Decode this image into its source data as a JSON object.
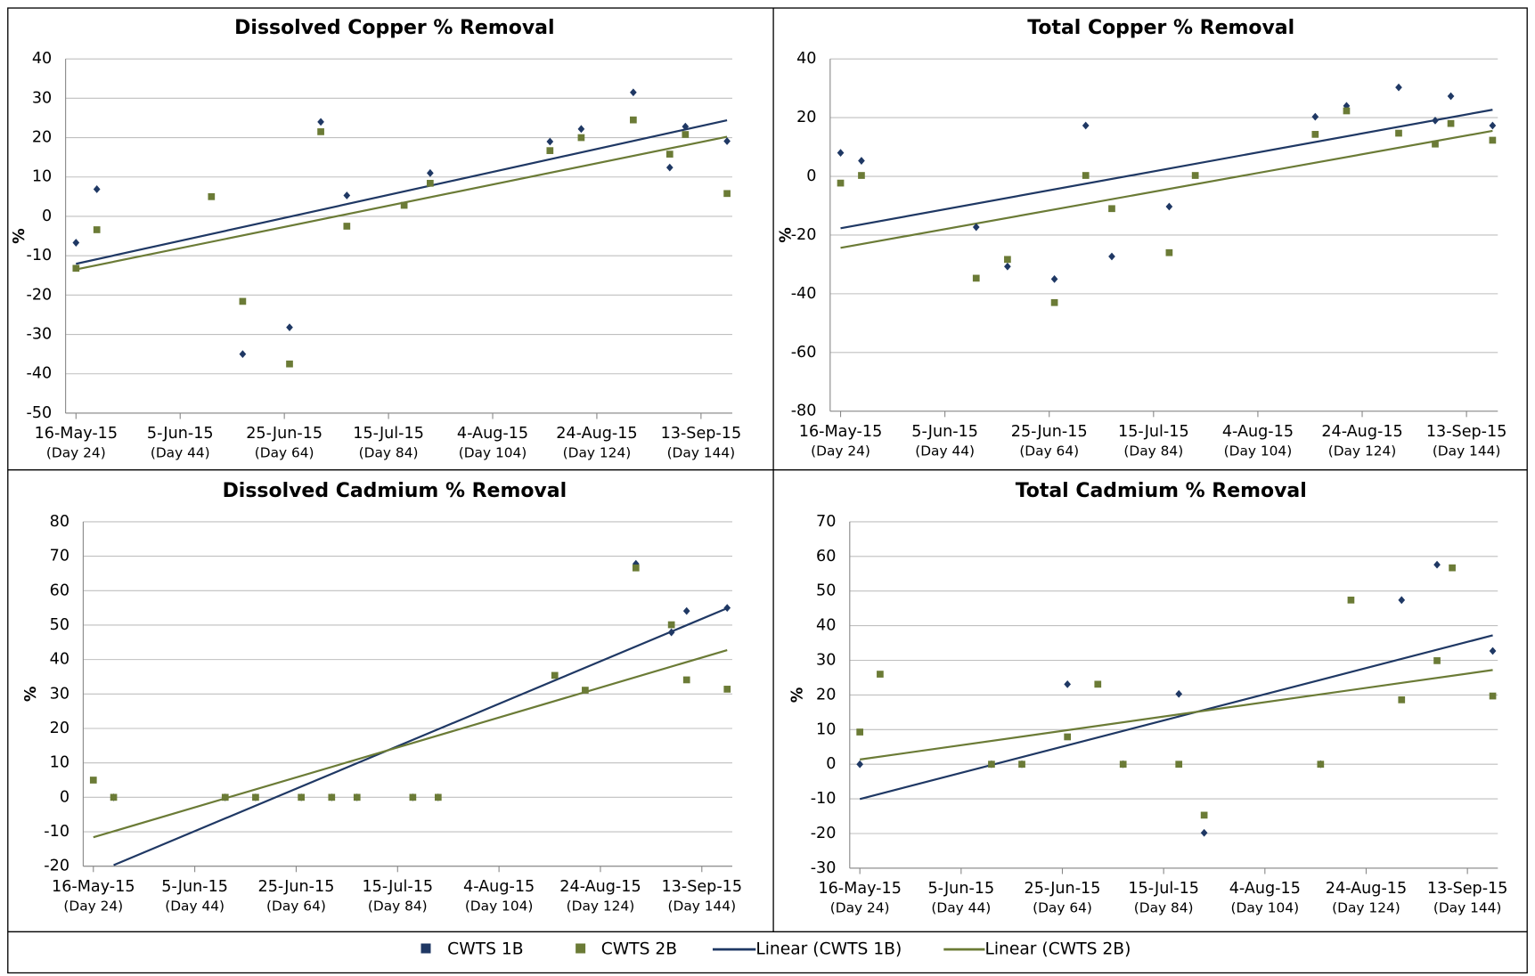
{
  "chart_data": [
    {
      "type": "scatter",
      "title": "Dissolved Copper % Removal",
      "y_label": "%",
      "x": [
        24,
        28,
        50,
        56,
        65,
        71,
        76,
        87,
        92,
        115,
        121,
        131,
        138,
        141,
        149
      ],
      "xlim": [
        22,
        150
      ],
      "xticks": [
        {
          "value": 24,
          "label": "16-May-15"
        },
        {
          "value": 44,
          "label": "5-Jun-15"
        },
        {
          "value": 64,
          "label": "25-Jun-15"
        },
        {
          "value": 84,
          "label": "15-Jul-15"
        },
        {
          "value": 104,
          "label": "4-Aug-15"
        },
        {
          "value": 124,
          "label": "24-Aug-15"
        },
        {
          "value": 144,
          "label": "13-Sep-15"
        }
      ],
      "xtick_days": [
        "(Day 24)",
        "(Day 44)",
        "(Day 64)",
        "(Day 84)",
        "(Day 104)",
        "(Day 124)",
        "(Day 144)"
      ],
      "ylim": [
        -50,
        40
      ],
      "yticks": [
        -50,
        -40,
        -30,
        -20,
        -10,
        0,
        10,
        20,
        30,
        40
      ],
      "grid": true,
      "series": [
        {
          "name": "CWTS 1B",
          "color": "#1f3864",
          "marker": "diamond",
          "values": [
            -6.7,
            6.9,
            null,
            -35,
            -28.2,
            24,
            5.3,
            null,
            11,
            19,
            22.2,
            31.5,
            12.4,
            22.8,
            19.1
          ],
          "trendline": {
            "name": "Linear (CWTS 1B)"
          }
        },
        {
          "name": "CWTS 2B",
          "color": "#6b7b36",
          "marker": "square",
          "values": [
            -13.2,
            -3.4,
            5,
            -21.6,
            -37.5,
            21.5,
            -2.5,
            2.8,
            8.4,
            16.7,
            20,
            24.5,
            15.8,
            20.8,
            5.8
          ],
          "trendline": {
            "name": "Linear (CWTS 2B)"
          }
        }
      ]
    },
    {
      "type": "scatter",
      "title": "Total Copper % Removal",
      "y_label": "%",
      "x": [
        24,
        28,
        50,
        56,
        65,
        71,
        76,
        87,
        92,
        115,
        121,
        131,
        138,
        141,
        149
      ],
      "xlim": [
        22,
        150
      ],
      "xticks": [
        {
          "value": 24,
          "label": "16-May-15"
        },
        {
          "value": 44,
          "label": "5-Jun-15"
        },
        {
          "value": 64,
          "label": "25-Jun-15"
        },
        {
          "value": 84,
          "label": "15-Jul-15"
        },
        {
          "value": 104,
          "label": "4-Aug-15"
        },
        {
          "value": 124,
          "label": "24-Aug-15"
        },
        {
          "value": 144,
          "label": "13-Sep-15"
        }
      ],
      "xtick_days": [
        "(Day 24)",
        "(Day 44)",
        "(Day 64)",
        "(Day 84)",
        "(Day 104)",
        "(Day 124)",
        "(Day 144)"
      ],
      "ylim": [
        -80,
        40
      ],
      "yticks": [
        -80,
        -60,
        -40,
        -20,
        0,
        20,
        40
      ],
      "grid": true,
      "series": [
        {
          "color": "#1f3864",
          "marker": "diamond",
          "values": [
            8,
            5.3,
            -17.3,
            -30.7,
            -35,
            17.3,
            -27.3,
            -10.3,
            null,
            20.3,
            24,
            30.3,
            19,
            27.3,
            17.3
          ],
          "trendline": true
        },
        {
          "color": "#6b7b36",
          "marker": "square",
          "values": [
            -2.3,
            0.3,
            -34.7,
            -28.3,
            -43,
            0.3,
            -11,
            -26,
            0.3,
            14.3,
            22.3,
            14.7,
            11,
            18,
            12.3
          ],
          "trendline": true
        }
      ]
    },
    {
      "type": "scatter",
      "title": "Dissolved Cadmium % Removal",
      "y_label": "%",
      "x": [
        24,
        28,
        50,
        56,
        65,
        71,
        76,
        87,
        92,
        115,
        121,
        131,
        138,
        141,
        149
      ],
      "xlim": [
        22,
        150
      ],
      "xticks": [
        {
          "value": 24,
          "label": "16-May-15"
        },
        {
          "value": 44,
          "label": "5-Jun-15"
        },
        {
          "value": 64,
          "label": "25-Jun-15"
        },
        {
          "value": 84,
          "label": "15-Jul-15"
        },
        {
          "value": 104,
          "label": "4-Aug-15"
        },
        {
          "value": 124,
          "label": "24-Aug-15"
        },
        {
          "value": 144,
          "label": "13-Sep-15"
        }
      ],
      "xtick_days": [
        "(Day 24)",
        "(Day 44)",
        "(Day 64)",
        "(Day 84)",
        "(Day 104)",
        "(Day 124)",
        "(Day 144)"
      ],
      "ylim": [
        -20,
        80
      ],
      "yticks": [
        -20,
        -10,
        0,
        10,
        20,
        30,
        40,
        50,
        60,
        70,
        80
      ],
      "grid": true,
      "series": [
        {
          "color": "#1f3864",
          "marker": "diamond",
          "values": [
            null,
            0,
            0,
            0,
            0,
            0,
            0,
            0,
            0,
            null,
            null,
            67.8,
            47.9,
            54.1,
            55
          ],
          "trendline": true
        },
        {
          "color": "#6b7b36",
          "marker": "square",
          "values": [
            5,
            0,
            0,
            0,
            0,
            0,
            0,
            0,
            0,
            35.4,
            31.1,
            66.6,
            50.1,
            34.1,
            31.4
          ],
          "trendline": true
        }
      ]
    },
    {
      "type": "scatter",
      "title": "Total Cadmium % Removal",
      "y_label": "%",
      "x": [
        24,
        28,
        50,
        56,
        65,
        71,
        76,
        87,
        92,
        115,
        121,
        131,
        138,
        141,
        149
      ],
      "xlim": [
        22,
        150
      ],
      "xticks": [
        {
          "value": 24,
          "label": "16-May-15"
        },
        {
          "value": 44,
          "label": "5-Jun-15"
        },
        {
          "value": 64,
          "label": "25-Jun-15"
        },
        {
          "value": 84,
          "label": "15-Jul-15"
        },
        {
          "value": 104,
          "label": "4-Aug-15"
        },
        {
          "value": 124,
          "label": "24-Aug-15"
        },
        {
          "value": 144,
          "label": "13-Sep-15"
        }
      ],
      "xtick_days": [
        "(Day 24)",
        "(Day 44)",
        "(Day 64)",
        "(Day 84)",
        "(Day 104)",
        "(Day 124)",
        "(Day 144)"
      ],
      "ylim": [
        -30,
        70
      ],
      "yticks": [
        -30,
        -20,
        -10,
        0,
        10,
        20,
        30,
        40,
        50,
        60,
        70
      ],
      "grid": true,
      "series": [
        {
          "color": "#1f3864",
          "marker": "diamond",
          "values": [
            0,
            null,
            0,
            0,
            23.1,
            null,
            0,
            20.3,
            -19.8,
            0,
            null,
            47.4,
            57.6,
            null,
            32.7
          ],
          "trendline": true
        },
        {
          "color": "#6b7b36",
          "marker": "square",
          "values": [
            9.3,
            26,
            0,
            0,
            7.9,
            23.1,
            0,
            0,
            -14.7,
            0,
            47.4,
            18.6,
            29.9,
            56.7,
            19.7
          ],
          "trendline": true
        }
      ]
    }
  ]
}
